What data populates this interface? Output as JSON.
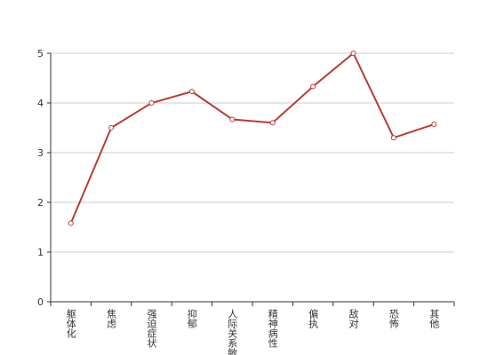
{
  "chart_data": {
    "type": "line",
    "categories": [
      "躯体化",
      "焦虑",
      "强迫症状",
      "抑郁",
      "人际关系敏感",
      "精神病性",
      "偏执",
      "敌对",
      "恐怖",
      "其他"
    ],
    "values": [
      1.58,
      3.5,
      4.0,
      4.23,
      3.67,
      3.6,
      4.33,
      5.0,
      3.3,
      3.57
    ],
    "color": "#b83b36",
    "ylim": [
      0,
      5
    ],
    "yticks": [
      0,
      1,
      2,
      3,
      4,
      5
    ],
    "grid": true
  }
}
